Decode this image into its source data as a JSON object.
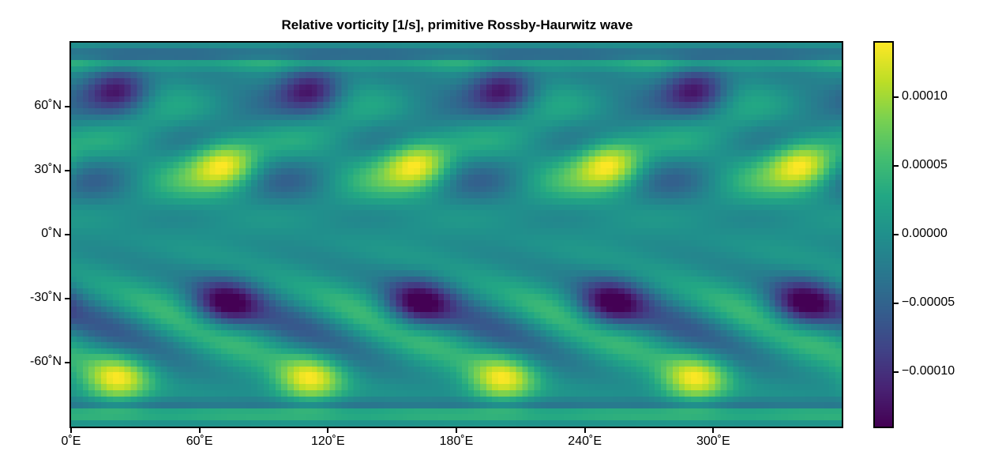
{
  "chart_data": {
    "type": "heatmap",
    "title": "Relative vorticity [1/s], primitive Rossby-Haurwitz wave",
    "xlabel": "",
    "ylabel": "",
    "xlim": [
      0,
      360
    ],
    "ylim": [
      -90,
      90
    ],
    "x_ticks": [
      {
        "value": 0,
        "label": "0˚E"
      },
      {
        "value": 60,
        "label": "60˚E"
      },
      {
        "value": 120,
        "label": "120˚E"
      },
      {
        "value": 180,
        "label": "180˚E"
      },
      {
        "value": 240,
        "label": "240˚E"
      },
      {
        "value": 300,
        "label": "300˚E"
      }
    ],
    "y_ticks": [
      {
        "value": 60,
        "label": "60˚N"
      },
      {
        "value": 30,
        "label": "30˚N"
      },
      {
        "value": 0,
        "label": "0˚N"
      },
      {
        "value": -30,
        "label": "-30˚N"
      },
      {
        "value": -60,
        "label": "-60˚N"
      }
    ],
    "colorbar": {
      "colormap": "viridis",
      "range": [
        -0.00014,
        0.00014
      ],
      "ticks": [
        {
          "value": 0.0001,
          "label": "0.00010"
        },
        {
          "value": 5e-05,
          "label": "0.00005"
        },
        {
          "value": 0,
          "label": "0.00000"
        },
        {
          "value": -5e-05,
          "label": "−0.00005"
        },
        {
          "value": -0.0001,
          "label": "−0.00010"
        }
      ]
    },
    "grid": false,
    "zonal_wavenumber": 4,
    "features": [
      {
        "type": "max",
        "lon": 72,
        "lat": 33,
        "value": 0.00013
      },
      {
        "type": "max",
        "lon": 162,
        "lat": 33,
        "value": 0.00013
      },
      {
        "type": "max",
        "lon": 252,
        "lat": 33,
        "value": 0.00013
      },
      {
        "type": "max",
        "lon": 342,
        "lat": 33,
        "value": 0.00013
      },
      {
        "type": "min",
        "lon": 72,
        "lat": -33,
        "value": -0.00013
      },
      {
        "type": "min",
        "lon": 162,
        "lat": -33,
        "value": -0.00013
      },
      {
        "type": "min",
        "lon": 252,
        "lat": -33,
        "value": -0.00013
      },
      {
        "type": "min",
        "lon": 342,
        "lat": -33,
        "value": -0.00013
      },
      {
        "type": "min",
        "lon": 22,
        "lat": 68,
        "value": -0.00013
      },
      {
        "type": "min",
        "lon": 112,
        "lat": 68,
        "value": -0.00013
      },
      {
        "type": "min",
        "lon": 202,
        "lat": 68,
        "value": -0.00013
      },
      {
        "type": "min",
        "lon": 292,
        "lat": 68,
        "value": -0.00013
      },
      {
        "type": "max",
        "lon": 22,
        "lat": -68,
        "value": 0.00013
      },
      {
        "type": "max",
        "lon": 112,
        "lat": -68,
        "value": 0.00013
      },
      {
        "type": "max",
        "lon": 202,
        "lat": -68,
        "value": 0.00013
      },
      {
        "type": "max",
        "lon": 292,
        "lat": -68,
        "value": 0.00013
      }
    ]
  }
}
